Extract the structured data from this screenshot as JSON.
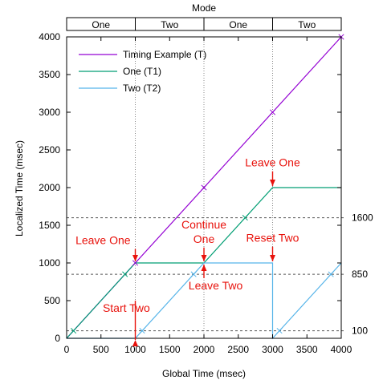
{
  "chart_data": {
    "type": "line",
    "title": "Mode",
    "xlabel": "Global Time (msec)",
    "ylabel": "Localized Time (msec)",
    "xlim": [
      0,
      4000
    ],
    "ylim": [
      0,
      4000
    ],
    "x_ticks": [
      0,
      500,
      1000,
      1500,
      2000,
      2500,
      3000,
      3500,
      4000
    ],
    "y_ticks": [
      0,
      500,
      1000,
      1500,
      2000,
      2500,
      3000,
      3500,
      4000
    ],
    "legend_position": "top-left",
    "mode_segments": [
      {
        "label": "One",
        "from": 0,
        "to": 1000
      },
      {
        "label": "Two",
        "from": 1000,
        "to": 2000
      },
      {
        "label": "One",
        "from": 2000,
        "to": 3000
      },
      {
        "label": "Two",
        "from": 3000,
        "to": 4000
      }
    ],
    "vertical_lines": [
      1000,
      2000,
      3000
    ],
    "horizontal_lines": [
      {
        "y": 1600,
        "label": "1600"
      },
      {
        "y": 850,
        "label": "850"
      },
      {
        "y": 100,
        "label": "100"
      }
    ],
    "series": [
      {
        "name": "Timing Example (T)",
        "color": "#9400d3",
        "x": [
          0,
          4000
        ],
        "y": [
          0,
          4000
        ],
        "markers": [
          [
            1000,
            1000
          ],
          [
            2000,
            2000
          ],
          [
            3000,
            3000
          ],
          [
            4000,
            4000
          ]
        ]
      },
      {
        "name": "One (T1)",
        "color": "#009e73",
        "x": [
          0,
          1000,
          2000,
          3000,
          4000
        ],
        "y": [
          0,
          1000,
          1000,
          2000,
          2000
        ],
        "markers": [
          [
            100,
            100
          ],
          [
            850,
            850
          ],
          [
            2600,
            1600
          ]
        ]
      },
      {
        "name": "Two (T2)",
        "color": "#56b4e9",
        "x": [
          0,
          1000,
          2000,
          3000,
          3000,
          4000
        ],
        "y": [
          0,
          0,
          1000,
          1000,
          0,
          1000
        ],
        "markers": [
          [
            1100,
            100
          ],
          [
            1850,
            850
          ],
          [
            3100,
            100
          ],
          [
            3850,
            850
          ]
        ]
      }
    ],
    "annotations": [
      {
        "text": "Leave One",
        "x": 1000,
        "y": 1000,
        "dir": "down",
        "label_lines": [
          "Leave One"
        ],
        "label_x": 530,
        "label_y": 1250
      },
      {
        "text": "Start Two",
        "x": 1000,
        "y": 0,
        "dir": "up",
        "label_lines": [
          "Start Two"
        ],
        "label_x": 870,
        "label_y": 350
      },
      {
        "text": "Continue One",
        "x": 2000,
        "y": 1000,
        "dir": "down",
        "label_lines": [
          "Continue",
          "One"
        ],
        "label_x": 2000,
        "label_y": 1460
      },
      {
        "text": "Leave Two",
        "x": 2000,
        "y": 1000,
        "dir": "up",
        "label_lines": [
          "Leave Two"
        ],
        "label_x": 2170,
        "label_y": 650
      },
      {
        "text": "Leave One",
        "x": 3000,
        "y": 2000,
        "dir": "down",
        "label_lines": [
          "Leave One"
        ],
        "label_x": 3000,
        "label_y": 2280
      },
      {
        "text": "Reset Two",
        "x": 3000,
        "y": 1000,
        "dir": "down",
        "label_lines": [
          "Reset Two"
        ],
        "label_x": 3000,
        "label_y": 1280
      }
    ]
  },
  "colors": {
    "annotation": "#e8120c",
    "grid": "#888888"
  }
}
